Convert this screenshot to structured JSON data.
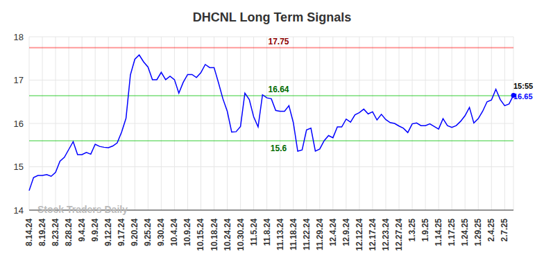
{
  "chart_data": {
    "type": "line",
    "title": "DHCNL Long Term Signals",
    "watermark": "Stock Traders Daily",
    "last_time": "15:55",
    "categories": [
      "8.14.24",
      null,
      null,
      "8.19.24",
      null,
      null,
      "8.23.24",
      null,
      null,
      "8.28.24",
      null,
      null,
      "9.4.24",
      null,
      null,
      "9.9.24",
      null,
      null,
      "9.12.24",
      null,
      null,
      "9.17.24",
      null,
      null,
      "9.20.24",
      null,
      null,
      "9.25.24",
      null,
      null,
      "9.30.24",
      null,
      null,
      "10.4.24",
      null,
      null,
      "10.9.24",
      null,
      null,
      "10.15.24",
      null,
      null,
      "10.18.24",
      null,
      null,
      "10.24.24",
      null,
      null,
      "10.30.24",
      null,
      null,
      "11.5.24",
      null,
      null,
      "11.8.24",
      null,
      null,
      "11.13.24",
      null,
      null,
      "11.18.24",
      null,
      null,
      "11.22.24",
      null,
      null,
      "11.29.24",
      null,
      null,
      "12.4.24",
      null,
      null,
      "12.9.24",
      null,
      null,
      "12.12.24",
      null,
      null,
      "12.17.24",
      null,
      null,
      "12.23.24",
      null,
      null,
      "12.27.24",
      null,
      null,
      "1.3.25",
      null,
      null,
      "1.9.25",
      null,
      null,
      "1.14.25",
      null,
      null,
      "1.17.25",
      null,
      null,
      "1.24.25",
      null,
      null,
      "1.29.25",
      null,
      null,
      "2.4.25",
      null,
      null,
      "2.7.25",
      null,
      null
    ],
    "values": [
      14.45,
      14.75,
      14.8,
      14.8,
      14.82,
      14.78,
      14.87,
      15.13,
      15.22,
      15.4,
      15.58,
      15.28,
      15.28,
      15.33,
      15.29,
      15.52,
      15.47,
      15.45,
      15.44,
      15.48,
      15.55,
      15.8,
      16.12,
      17.12,
      17.48,
      17.58,
      17.42,
      17.3,
      17.01,
      17.01,
      17.18,
      17.01,
      17.09,
      17.01,
      16.7,
      16.95,
      17.13,
      17.13,
      17.06,
      17.17,
      17.36,
      17.29,
      17.29,
      16.94,
      16.57,
      16.28,
      15.8,
      15.81,
      15.93,
      16.7,
      16.55,
      16.15,
      15.92,
      16.66,
      16.59,
      16.57,
      16.3,
      16.28,
      16.28,
      16.41,
      16.02,
      15.36,
      15.39,
      15.85,
      15.89,
      15.36,
      15.41,
      15.6,
      15.72,
      15.67,
      15.92,
      15.92,
      16.1,
      16.03,
      16.2,
      16.25,
      16.33,
      16.22,
      16.27,
      16.08,
      16.21,
      16.09,
      16.02,
      16.0,
      15.94,
      15.89,
      15.79,
      15.99,
      16.01,
      15.95,
      15.95,
      15.99,
      15.93,
      15.87,
      16.11,
      15.95,
      15.91,
      15.95,
      16.05,
      16.18,
      16.37,
      16.01,
      16.11,
      16.28,
      16.5,
      16.54,
      16.79,
      16.55,
      16.41,
      16.45,
      16.65
    ],
    "color": "#0000ff",
    "ylim": [
      14,
      18
    ],
    "yticks": [
      14,
      15,
      16,
      17,
      18
    ],
    "grid": true,
    "reference_lines": [
      {
        "value": 17.75,
        "color": "#ff0000",
        "label_position": "above"
      },
      {
        "value": 16.64,
        "color": "#00c000",
        "label_position": "above"
      },
      {
        "value": 15.6,
        "color": "#00c000",
        "label_position": "below"
      }
    ]
  }
}
